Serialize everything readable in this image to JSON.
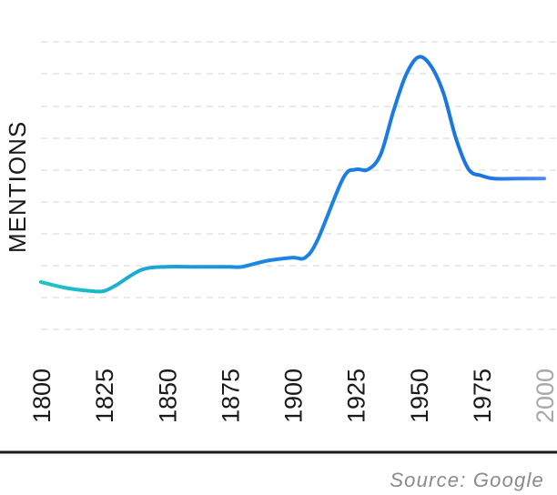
{
  "chart_data": {
    "type": "line",
    "ylabel": "MENTIONS",
    "xlabel": "",
    "title": "",
    "x_ticks": [
      "1800",
      "1825",
      "1850",
      "1875",
      "1900",
      "1925",
      "1950",
      "1975",
      "2000"
    ],
    "future_tick": "2000",
    "xlim": [
      1800,
      2000
    ],
    "ylim": [
      0,
      100
    ],
    "grid": true,
    "series": [
      {
        "x": [
          1800,
          1810,
          1820,
          1825,
          1830,
          1840,
          1850,
          1860,
          1870,
          1875,
          1880,
          1890,
          1900,
          1905,
          1910,
          1920,
          1925,
          1930,
          1935,
          1940,
          1945,
          1950,
          1955,
          1960,
          1965,
          1970,
          1975,
          1980,
          1990,
          2000
        ],
        "y": [
          21,
          19,
          18,
          18,
          20,
          25,
          26,
          26,
          26,
          26,
          26,
          28,
          29,
          29,
          35,
          55,
          58,
          58,
          63,
          77,
          89,
          95,
          92,
          83,
          68,
          58,
          56,
          55,
          55,
          55
        ],
        "colors": [
          "#1cc6c6",
          "#1a86e2",
          "#1a74e0",
          "#4c8ae8"
        ]
      }
    ],
    "source": "Source: Google"
  }
}
